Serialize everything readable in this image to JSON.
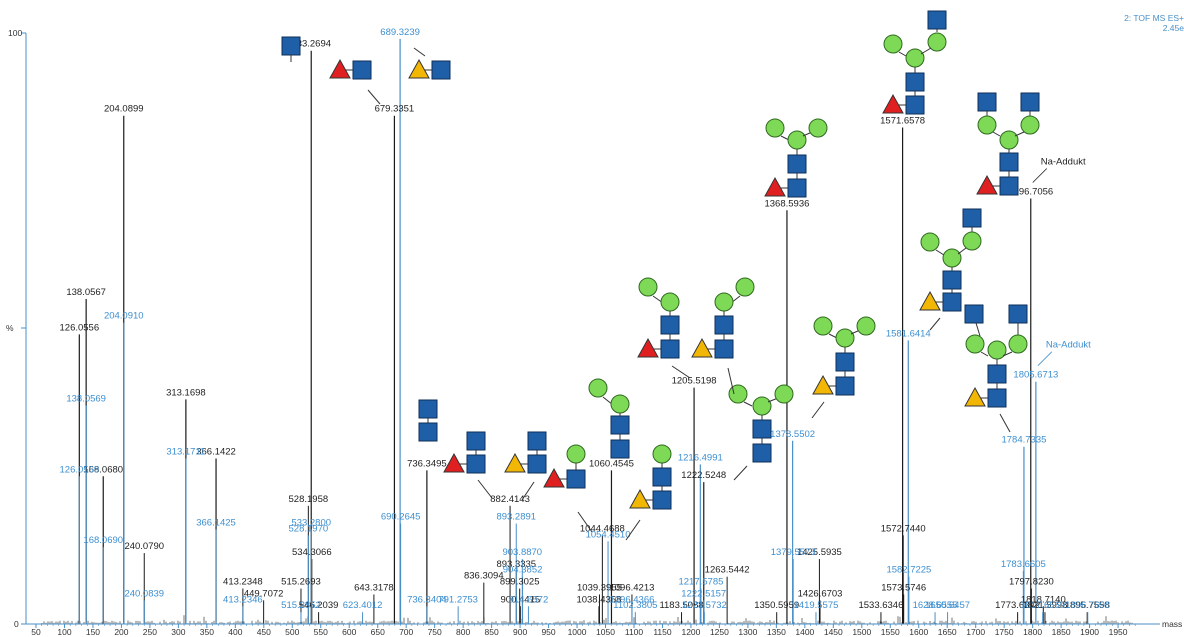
{
  "header": {
    "line1": "2: TOF MS ES+",
    "line2": "2.45e"
  },
  "yaxis": {
    "max_label": "100",
    "unit_label": "%",
    "zero_label": "0"
  },
  "colors": {
    "trace_black": "#1a1a1a",
    "trace_blue": "#4a90c8",
    "label_black": "#222222",
    "label_blue": "#3d8fd0",
    "axis": "#4a90c8",
    "glcnac": "#1f5fa8",
    "fucose": "#e02020",
    "galnac": "#f2b705",
    "hexose": "#7ed957"
  },
  "chart_data": {
    "type": "bar",
    "xlabel": "mass",
    "xlim": [
      50,
      1985
    ],
    "ylim": [
      0,
      100
    ],
    "xticks": [
      50,
      100,
      150,
      200,
      250,
      300,
      350,
      400,
      450,
      500,
      550,
      600,
      650,
      700,
      750,
      800,
      850,
      900,
      950,
      1000,
      1050,
      1100,
      1150,
      1200,
      1250,
      1300,
      1350,
      1400,
      1450,
      1500,
      1550,
      1600,
      1650,
      1700,
      1750,
      1800,
      1850,
      1900,
      1950
    ],
    "series": [
      {
        "color": "black",
        "peaks": [
          {
            "mz": 126.0556,
            "int": 49,
            "label": "126.0556"
          },
          {
            "mz": 138.0567,
            "int": 55,
            "label": "138.0567"
          },
          {
            "mz": 168.068,
            "int": 25,
            "label": "168.0680"
          },
          {
            "mz": 204.0899,
            "int": 86,
            "label": "204.0899"
          },
          {
            "mz": 240.079,
            "int": 12,
            "label": "240.0790"
          },
          {
            "mz": 313.1698,
            "int": 38,
            "label": "313.1698"
          },
          {
            "mz": 366.1422,
            "int": 28,
            "label": "366.1422"
          },
          {
            "mz": 413.2348,
            "int": 6,
            "label": "413.2348"
          },
          {
            "mz": 449.7072,
            "int": 4,
            "label": "449.7072"
          },
          {
            "mz": 515.2693,
            "int": 6,
            "label": "515.2693"
          },
          {
            "mz": 528.1958,
            "int": 20,
            "label": "528.1958"
          },
          {
            "mz": 533.2694,
            "int": 97,
            "label": "533.2694"
          },
          {
            "mz": 534.3066,
            "int": 11,
            "label": "534.3066"
          },
          {
            "mz": 546.2039,
            "int": 2,
            "label": "546.2039"
          },
          {
            "mz": 643.3178,
            "int": 5,
            "label": "643.3178"
          },
          {
            "mz": 679.3351,
            "int": 86,
            "label": "679.3351"
          },
          {
            "mz": 736.3495,
            "int": 26,
            "label": "736.3495"
          },
          {
            "mz": 836.3094,
            "int": 7,
            "label": "836.3094"
          },
          {
            "mz": 882.4143,
            "int": 20,
            "label": "882.4143"
          },
          {
            "mz": 893.3335,
            "int": 9,
            "label": "893.3335"
          },
          {
            "mz": 899.3025,
            "int": 6,
            "label": "899.3025"
          },
          {
            "mz": 900.4415,
            "int": 3,
            "label": "900.4415"
          },
          {
            "mz": 1038.4358,
            "int": 3,
            "label": "1038.4358"
          },
          {
            "mz": 1039.3955,
            "int": 5,
            "label": "1039.3955"
          },
          {
            "mz": 1044.4688,
            "int": 15,
            "label": "1044.4688"
          },
          {
            "mz": 1060.4545,
            "int": 26,
            "label": "1060.4545"
          },
          {
            "mz": 1096.4213,
            "int": 5,
            "label": "1096.4213"
          },
          {
            "mz": 1183.5088,
            "int": 2,
            "label": "1183.5088"
          },
          {
            "mz": 1205.5198,
            "int": 40,
            "label": "1205.5198"
          },
          {
            "mz": 1222.5248,
            "int": 24,
            "label": "1222.5248"
          },
          {
            "mz": 1263.5442,
            "int": 8,
            "label": "1263.5442"
          },
          {
            "mz": 1350.5959,
            "int": 2,
            "label": "1350.5959"
          },
          {
            "mz": 1368.5936,
            "int": 70,
            "label": "1368.5936"
          },
          {
            "mz": 1425.5935,
            "int": 11,
            "label": "1425.5935"
          },
          {
            "mz": 1426.6703,
            "int": 4,
            "label": "1426.6703"
          },
          {
            "mz": 1533.6346,
            "int": 2,
            "label": "1533.6346"
          },
          {
            "mz": 1571.6578,
            "int": 84,
            "label": "1571.6578"
          },
          {
            "mz": 1572.744,
            "int": 15,
            "label": "1572.7440"
          },
          {
            "mz": 1573.5746,
            "int": 5,
            "label": "1573.5746"
          },
          {
            "mz": 1773.6342,
            "int": 2,
            "label": "1773.6342"
          },
          {
            "mz": 1796.7056,
            "int": 72,
            "label": "1796.7056"
          },
          {
            "mz": 1797.823,
            "int": 6,
            "label": "1797.8230"
          },
          {
            "mz": 1818.714,
            "int": 3,
            "label": "1818.7140"
          },
          {
            "mz": 1821.5998,
            "int": 2,
            "label": "1821.5998"
          },
          {
            "mz": 1895.7558,
            "int": 2,
            "label": "1895.7558"
          }
        ]
      },
      {
        "color": "blue",
        "peaks": [
          {
            "mz": 126.0559,
            "int": 25,
            "label": "126.0559"
          },
          {
            "mz": 138.0569,
            "int": 37,
            "label": "138.0569"
          },
          {
            "mz": 168.069,
            "int": 13,
            "label": "168.0690"
          },
          {
            "mz": 204.091,
            "int": 51,
            "label": "204.0910"
          },
          {
            "mz": 240.0839,
            "int": 4,
            "label": "240.0839"
          },
          {
            "mz": 313.1711,
            "int": 28,
            "label": "313.1711"
          },
          {
            "mz": 366.1425,
            "int": 16,
            "label": "366.1425"
          },
          {
            "mz": 413.2346,
            "int": 3,
            "label": "413.2346"
          },
          {
            "mz": 515.2852,
            "int": 2,
            "label": "515.2852"
          },
          {
            "mz": 528.197,
            "int": 15,
            "label": "528.1970"
          },
          {
            "mz": 533.28,
            "int": 16,
            "label": "533.2800"
          },
          {
            "mz": 623.4012,
            "int": 2,
            "label": "623.4012"
          },
          {
            "mz": 689.3239,
            "int": 99,
            "label": "689.3239"
          },
          {
            "mz": 690.2645,
            "int": 17,
            "label": "690.2645"
          },
          {
            "mz": 736.3404,
            "int": 3,
            "label": "736.3404"
          },
          {
            "mz": 791.2753,
            "int": 3,
            "label": "791.2753"
          },
          {
            "mz": 893.2891,
            "int": 17,
            "label": "893.2891"
          },
          {
            "mz": 903.887,
            "int": 11,
            "label": "903.8870"
          },
          {
            "mz": 904.3852,
            "int": 8,
            "label": "904.3852"
          },
          {
            "mz": 914.6572,
            "int": 3,
            "label": "914.6572"
          },
          {
            "mz": 1054.451,
            "int": 14,
            "label": "1054.4510"
          },
          {
            "mz": 1096.4366,
            "int": 3,
            "label": "1096.4366"
          },
          {
            "mz": 1102.3805,
            "int": 2,
            "label": "1102.3805"
          },
          {
            "mz": 1216.4991,
            "int": 27,
            "label": "1216.4991"
          },
          {
            "mz": 1217.5785,
            "int": 6,
            "label": "1217.5785"
          },
          {
            "mz": 1222.5157,
            "int": 4,
            "label": "1222.5157"
          },
          {
            "mz": 1223.5732,
            "int": 2,
            "label": "1223.5732"
          },
          {
            "mz": 1378.5502,
            "int": 31,
            "label": "1378.5502"
          },
          {
            "mz": 1379.5573,
            "int": 11,
            "label": "1379.5573"
          },
          {
            "mz": 1419.5575,
            "int": 2,
            "label": "1419.5575"
          },
          {
            "mz": 1581.6414,
            "int": 48,
            "label": "1581.6414"
          },
          {
            "mz": 1582.7225,
            "int": 8,
            "label": "1582.7225"
          },
          {
            "mz": 1628.6555,
            "int": 2,
            "label": "1628.6555"
          },
          {
            "mz": 1650.6457,
            "int": 2,
            "label": "1650.6457"
          },
          {
            "mz": 1783.6605,
            "int": 9,
            "label": "1783.6605"
          },
          {
            "mz": 1784.7335,
            "int": 30,
            "label": "1784.7335"
          },
          {
            "mz": 1805.6713,
            "int": 41,
            "label": "1805.6713"
          },
          {
            "mz": 1817.6569,
            "int": 2,
            "label": "1817.6569"
          },
          {
            "mz": 1896.7698,
            "int": 2,
            "label": "1896.7698"
          }
        ]
      }
    ],
    "annotations": [
      {
        "text": "Na-Addukt",
        "mz": 1796.7056,
        "color": "black"
      },
      {
        "text": "Na-Addukt",
        "mz": 1805.6713,
        "color": "blue"
      }
    ]
  }
}
